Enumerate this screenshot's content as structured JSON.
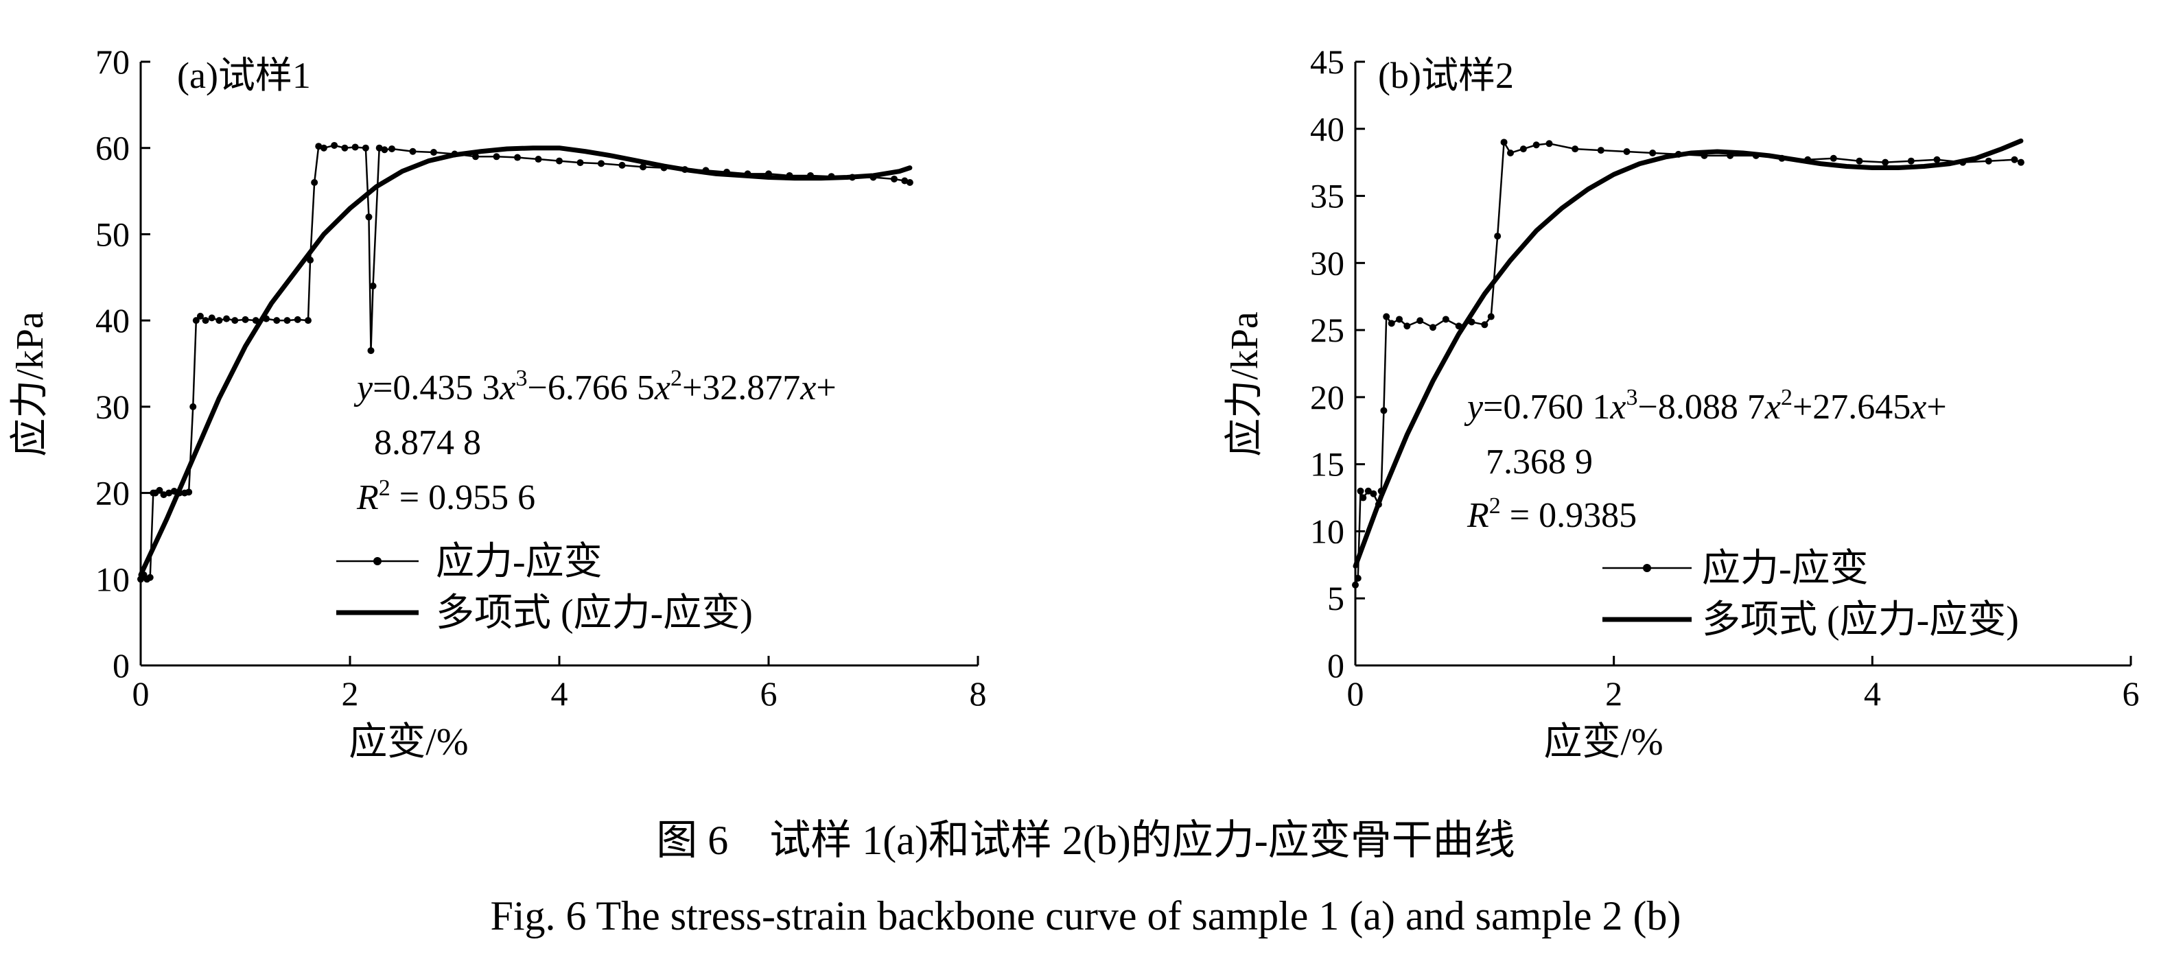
{
  "figure": {
    "caption_cn": "图 6　试样 1(a)和试样 2(b)的应力-应变骨干曲线",
    "caption_en": "Fig. 6  The stress-strain backbone curve of sample 1 (a) and sample 2 (b)"
  },
  "chart_data": [
    {
      "type": "line",
      "panel_label": "(a)试样1",
      "xlabel": "应变/%",
      "ylabel": "应力/kPa",
      "xlim": [
        0,
        8
      ],
      "ylim": [
        0,
        70
      ],
      "x_ticks": [
        "0",
        "2",
        "4",
        "6",
        "8"
      ],
      "y_ticks": [
        "0",
        "10",
        "20",
        "30",
        "40",
        "50",
        "60",
        "70"
      ],
      "grid": false,
      "legend_position": "lower-right",
      "equation": {
        "line1_parts": [
          "y",
          "=0.435 3",
          "x",
          "3",
          "−6.766 5",
          "x",
          "2",
          "+32.877",
          "x",
          "+"
        ],
        "line2": "8.874 8",
        "r2_label": "R",
        "r2_sup": "2",
        "r2_value": " = 0.955 6"
      },
      "series": [
        {
          "name": "应力-应变",
          "style": "thin-marker",
          "x": [
            0,
            0.03,
            0.06,
            0.09,
            0.12,
            0.14,
            0.18,
            0.22,
            0.27,
            0.32,
            0.37,
            0.42,
            0.46,
            0.5,
            0.53,
            0.57,
            0.62,
            0.68,
            0.75,
            0.82,
            0.9,
            1.0,
            1.1,
            1.2,
            1.3,
            1.4,
            1.5,
            1.6,
            1.62,
            1.66,
            1.7,
            1.75,
            1.85,
            1.95,
            2.05,
            2.15,
            2.18,
            2.2,
            2.22,
            2.28,
            2.33,
            2.4,
            2.6,
            2.8,
            3.0,
            3.2,
            3.4,
            3.6,
            3.8,
            4.0,
            4.2,
            4.4,
            4.6,
            4.8,
            5.0,
            5.2,
            5.4,
            5.6,
            5.8,
            6.0,
            6.2,
            6.4,
            6.6,
            6.8,
            7.0,
            7.2,
            7.3,
            7.35
          ],
          "y": [
            10,
            10.5,
            10,
            10.2,
            20,
            20,
            20.3,
            19.8,
            20,
            20.2,
            20,
            20,
            20.1,
            30,
            40,
            40.5,
            40,
            40.3,
            40,
            40.2,
            40,
            40.1,
            40,
            40.2,
            40,
            40,
            40.1,
            40,
            47,
            56,
            60.2,
            60,
            60.3,
            60,
            60.1,
            60,
            52,
            36.5,
            44,
            60,
            59.8,
            59.9,
            59.6,
            59.5,
            59.3,
            59,
            59,
            58.9,
            58.7,
            58.5,
            58.3,
            58.2,
            58,
            57.8,
            57.7,
            57.5,
            57.4,
            57.2,
            57,
            57,
            56.8,
            56.8,
            56.7,
            56.6,
            56.6,
            56.4,
            56.2,
            56
          ]
        },
        {
          "name": "多项式 (应力-应变)",
          "style": "thick-trend",
          "x": [
            0,
            0.25,
            0.5,
            0.75,
            1.0,
            1.25,
            1.5,
            1.75,
            2.0,
            2.25,
            2.5,
            2.75,
            3.0,
            3.25,
            3.5,
            3.75,
            4.0,
            4.25,
            4.5,
            4.75,
            5.0,
            5.25,
            5.5,
            5.75,
            6.0,
            6.25,
            6.5,
            6.75,
            7.0,
            7.25,
            7.35
          ],
          "y": [
            10.5,
            17,
            24,
            31,
            37,
            42,
            46,
            50,
            53,
            55.5,
            57.3,
            58.5,
            59.2,
            59.6,
            59.9,
            60,
            60,
            59.6,
            59.1,
            58.5,
            57.9,
            57.4,
            57,
            56.8,
            56.6,
            56.5,
            56.5,
            56.6,
            56.8,
            57.3,
            57.7
          ]
        }
      ]
    },
    {
      "type": "line",
      "panel_label": "(b)试样2",
      "xlabel": "应变/%",
      "ylabel": "应力/kPa",
      "xlim": [
        0,
        6
      ],
      "ylim": [
        0,
        45
      ],
      "x_ticks": [
        "0",
        "2",
        "4",
        "6"
      ],
      "y_ticks": [
        "0",
        "5",
        "10",
        "15",
        "20",
        "25",
        "30",
        "35",
        "40",
        "45"
      ],
      "grid": false,
      "legend_position": "lower-right",
      "equation": {
        "line1_parts": [
          "y",
          "=0.760 1",
          "x",
          "3",
          "−8.088 7",
          "x",
          "2",
          "+27.645",
          "x",
          "+"
        ],
        "line2": "7.368 9",
        "r2_label": "R",
        "r2_sup": "2",
        "r2_value": " = 0.9385"
      },
      "series": [
        {
          "name": "应力-应变",
          "style": "thin-marker",
          "x": [
            0,
            0.02,
            0.04,
            0.06,
            0.1,
            0.14,
            0.18,
            0.2,
            0.22,
            0.24,
            0.28,
            0.34,
            0.4,
            0.5,
            0.6,
            0.7,
            0.8,
            0.9,
            1.0,
            1.05,
            1.1,
            1.15,
            1.2,
            1.3,
            1.4,
            1.5,
            1.7,
            1.9,
            2.1,
            2.3,
            2.5,
            2.7,
            2.9,
            3.1,
            3.3,
            3.5,
            3.7,
            3.9,
            4.1,
            4.3,
            4.5,
            4.7,
            4.9,
            5.1,
            5.15
          ],
          "y": [
            6,
            6.5,
            13,
            12.5,
            13,
            12.8,
            12,
            13,
            19,
            26,
            25.5,
            25.8,
            25.3,
            25.7,
            25.2,
            25.8,
            25.3,
            25.6,
            25.4,
            26,
            32,
            39,
            38.2,
            38.5,
            38.8,
            38.9,
            38.5,
            38.4,
            38.3,
            38.2,
            38.1,
            38,
            38,
            38,
            37.8,
            37.7,
            37.8,
            37.6,
            37.5,
            37.6,
            37.7,
            37.5,
            37.6,
            37.7,
            37.5
          ]
        },
        {
          "name": "多项式 (应力-应变)",
          "style": "thick-trend",
          "x": [
            0,
            0.2,
            0.4,
            0.6,
            0.8,
            1.0,
            1.2,
            1.4,
            1.6,
            1.8,
            2.0,
            2.2,
            2.4,
            2.6,
            2.8,
            3.0,
            3.2,
            3.4,
            3.6,
            3.8,
            4.0,
            4.2,
            4.4,
            4.6,
            4.8,
            5.0,
            5.15
          ],
          "y": [
            7.4,
            12.6,
            17.2,
            21.2,
            24.7,
            27.7,
            30.2,
            32.4,
            34.1,
            35.5,
            36.6,
            37.4,
            37.9,
            38.2,
            38.3,
            38.2,
            38,
            37.7,
            37.4,
            37.2,
            37.1,
            37.1,
            37.2,
            37.4,
            37.8,
            38.5,
            39.1
          ]
        }
      ]
    }
  ]
}
